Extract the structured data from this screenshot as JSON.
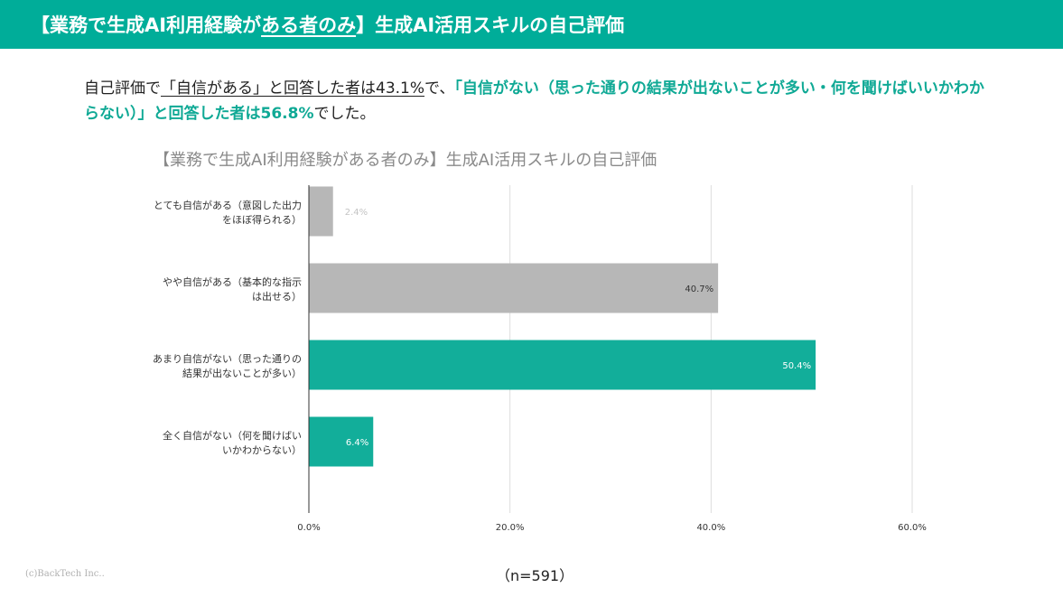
{
  "header": {
    "title_prefix": "【業務で生成AI利用経験が",
    "title_underlined": "ある者のみ",
    "title_suffix": "】生成AI活用スキルの自己評価",
    "background_color": "#00ad99"
  },
  "summary": {
    "part1": "自己評価で",
    "part2_underlined": "「自信がある」と回答した者は43.1%",
    "part3": "で、",
    "part4_highlight": "「自信がない（思った通りの結果が出ないことが多い・何を聞けばいいかわからない）」と回答した者は56.8%",
    "part5": "でした。",
    "highlight_color": "#0fa995"
  },
  "chart_data": {
    "type": "bar",
    "orientation": "horizontal",
    "title": "【業務で生成AI利用経験がある者のみ】生成AI活用スキルの自己評価",
    "categories": [
      [
        "とても自信がある（意図した出力",
        "をほぼ得られる）"
      ],
      [
        "やや自信がある（基本的な指示",
        "は出せる）"
      ],
      [
        "あまり自信がない（思った通りの",
        "結果が出ないことが多い）"
      ],
      [
        "全く自信がない（何を聞けばい",
        "いかわからない）"
      ]
    ],
    "values": [
      2.4,
      40.7,
      50.4,
      6.4
    ],
    "value_labels": [
      "2.4%",
      "40.7%",
      "50.4%",
      "6.4%"
    ],
    "colors": [
      "#b7b7b7",
      "#b7b7b7",
      "#12ae9a",
      "#12ae9a"
    ],
    "xlim": [
      0,
      60
    ],
    "ticks": [
      0,
      20,
      40,
      60
    ],
    "tick_labels": [
      "0.0%",
      "20.0%",
      "40.0%",
      "60.0%"
    ],
    "grid": true
  },
  "footer": {
    "copyright": "(c)BackTech Inc..",
    "sample_size": "（n=591）"
  }
}
